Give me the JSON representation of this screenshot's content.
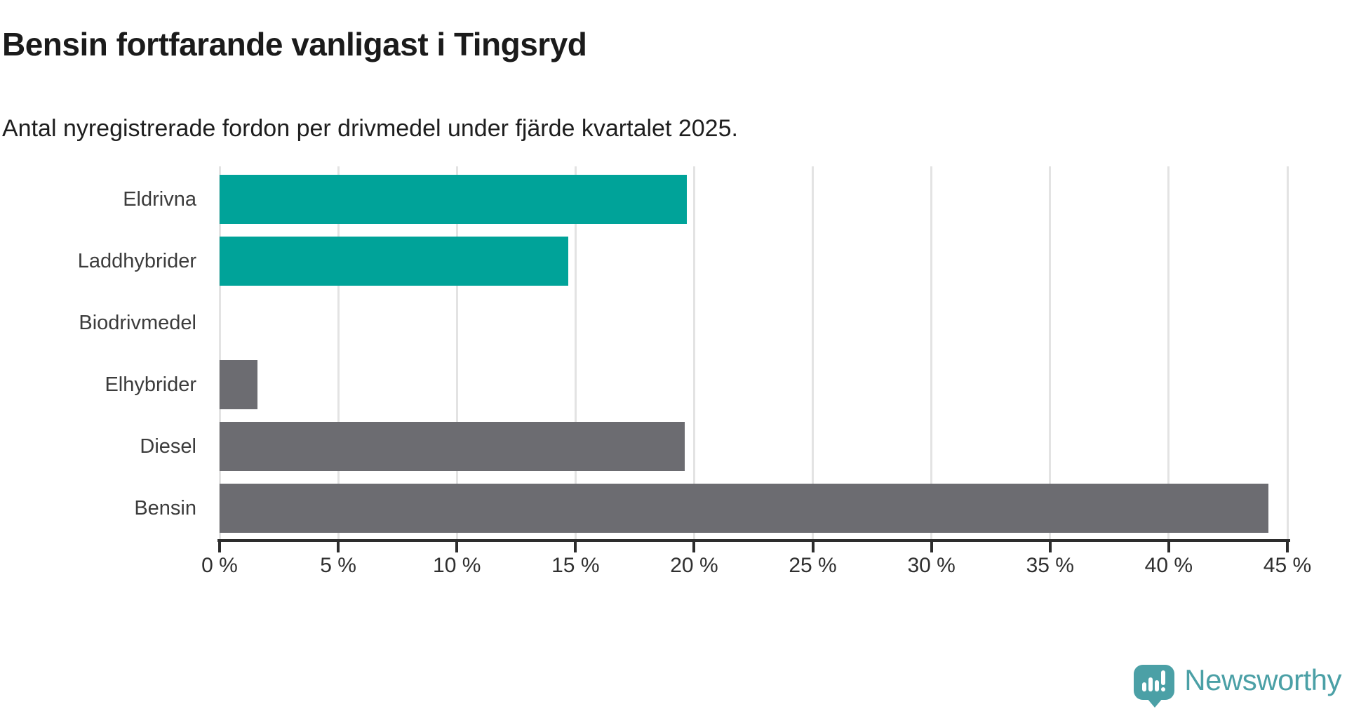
{
  "header": {
    "title": "Bensin fortfarande vanligast i Tingsryd",
    "subtitle": "Antal nyregistrerade fordon per drivmedel under fjärde kvartalet 2025."
  },
  "chart_data": {
    "type": "bar",
    "orientation": "horizontal",
    "title": "Bensin fortfarande vanligast i Tingsryd",
    "subtitle": "Antal nyregistrerade fordon per drivmedel under fjärde kvartalet 2025.",
    "categories": [
      "Eldrivna",
      "Laddhybrider",
      "Biodrivmedel",
      "Elhybrider",
      "Diesel",
      "Bensin"
    ],
    "values": [
      19.7,
      14.7,
      0,
      1.6,
      19.6,
      44.2
    ],
    "unit": "%",
    "bar_colors": [
      "#00a399",
      "#00a399",
      "#00a399",
      "#6c6c71",
      "#6c6c71",
      "#6c6c71"
    ],
    "xlabel": "",
    "ylabel": "",
    "xlim": [
      0,
      45
    ],
    "x_tick_step": 5,
    "x_tick_labels": [
      "0 %",
      "5 %",
      "10 %",
      "15 %",
      "20 %",
      "25 %",
      "30 %",
      "35 %",
      "40 %",
      "45 %"
    ],
    "grid": true,
    "legend": false
  },
  "colors": {
    "teal": "#00a399",
    "gray": "#6c6c71",
    "gridline": "#e3e3e3",
    "axis": "#2d2d2d",
    "brand_teal": "#4ba0a6"
  },
  "branding": {
    "logo_text": "Newsworthy",
    "logo_icon": "newsworthy-speech-bubble-chart-icon"
  }
}
